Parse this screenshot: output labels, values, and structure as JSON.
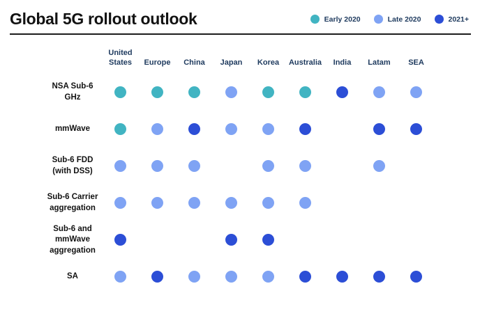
{
  "chart_data": {
    "type": "heatmap",
    "subtype": "dot-matrix-status",
    "title": "Global 5G rollout outlook",
    "legend_position": "top-right",
    "grid": false,
    "legend": [
      {
        "key": "early2020",
        "label": "Early 2020",
        "color": "#41b4c2"
      },
      {
        "key": "late2020",
        "label": "Late 2020",
        "color": "#7fa3f4"
      },
      {
        "key": "2021plus",
        "label": "2021+",
        "color": "#2c4ed6"
      }
    ],
    "columns": [
      "United States",
      "Europe",
      "China",
      "Japan",
      "Korea",
      "Australia",
      "India",
      "Latam",
      "SEA"
    ],
    "rows": [
      {
        "label": "NSA Sub-6 GHz",
        "values": [
          "early2020",
          "early2020",
          "early2020",
          "late2020",
          "early2020",
          "early2020",
          "2021plus",
          "late2020",
          "late2020"
        ]
      },
      {
        "label": "mmWave",
        "values": [
          "early2020",
          "late2020",
          "2021plus",
          "late2020",
          "late2020",
          "2021plus",
          null,
          "2021plus",
          "2021plus"
        ]
      },
      {
        "label": "Sub-6 FDD (with DSS)",
        "values": [
          "late2020",
          "late2020",
          "late2020",
          null,
          "late2020",
          "late2020",
          null,
          "late2020",
          null
        ]
      },
      {
        "label": "Sub-6 Carrier aggregation",
        "values": [
          "late2020",
          "late2020",
          "late2020",
          "late2020",
          "late2020",
          "late2020",
          null,
          null,
          null
        ]
      },
      {
        "label": "Sub-6 and mmWave aggregation",
        "values": [
          "2021plus",
          null,
          null,
          "2021plus",
          "2021plus",
          null,
          null,
          null,
          null
        ]
      },
      {
        "label": "SA",
        "values": [
          "late2020",
          "2021plus",
          "late2020",
          "late2020",
          "late2020",
          "2021plus",
          "2021plus",
          "2021plus",
          "2021plus"
        ]
      }
    ],
    "text_colors": {
      "title": "#121212",
      "column_headers": "#1e3a5e",
      "row_labels": "#121212"
    }
  }
}
